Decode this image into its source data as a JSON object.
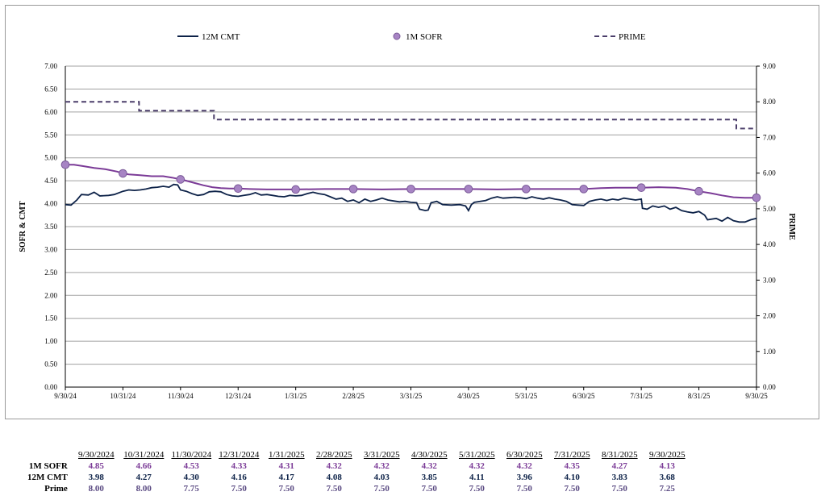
{
  "chart_data": {
    "type": "line",
    "legend": {
      "position": "top",
      "entries": [
        {
          "name": "12M CMT",
          "style": "solid-line"
        },
        {
          "name": "1M SOFR",
          "style": "markers-line"
        },
        {
          "name": "PRIME",
          "style": "dashed-line"
        }
      ]
    },
    "ylabel_left": "SOFR & CMT",
    "ylabel_right": "PRIME",
    "ylim_left": [
      0,
      7
    ],
    "ylim_right": [
      0,
      9
    ],
    "yticks_left": [
      "0.00",
      "0.50",
      "1.00",
      "1.50",
      "2.00",
      "2.50",
      "3.00",
      "3.50",
      "4.00",
      "4.50",
      "5.00",
      "5.50",
      "6.00",
      "6.50",
      "7.00"
    ],
    "yticks_right": [
      "0.00",
      "1.00",
      "2.00",
      "3.00",
      "4.00",
      "5.00",
      "6.00",
      "7.00",
      "8.00",
      "9.00"
    ],
    "x_ticks": [
      "9/30/24",
      "10/31/24",
      "11/30/24",
      "12/31/24",
      "1/31/25",
      "2/28/25",
      "3/31/25",
      "4/30/25",
      "5/31/25",
      "6/30/25",
      "7/31/25",
      "8/31/25",
      "9/30/25"
    ],
    "grid": "horizontal",
    "colors": {
      "cmt": "#0d2248",
      "sofr": "#7b3b97",
      "sofr_marker": "#a784c4",
      "prime": "#4b3e6a",
      "axis": "#000000"
    },
    "series": [
      {
        "name": "12M CMT",
        "axis": "left",
        "points": [
          [
            0,
            3.98
          ],
          [
            0.1,
            3.97
          ],
          [
            0.2,
            4.08
          ],
          [
            0.28,
            4.2
          ],
          [
            0.4,
            4.19
          ],
          [
            0.5,
            4.25
          ],
          [
            0.6,
            4.17
          ],
          [
            0.75,
            4.18
          ],
          [
            0.85,
            4.2
          ],
          [
            1.0,
            4.27
          ],
          [
            1.1,
            4.3
          ],
          [
            1.2,
            4.29
          ],
          [
            1.3,
            4.3
          ],
          [
            1.4,
            4.32
          ],
          [
            1.5,
            4.35
          ],
          [
            1.6,
            4.36
          ],
          [
            1.7,
            4.38
          ],
          [
            1.8,
            4.36
          ],
          [
            1.88,
            4.42
          ],
          [
            1.95,
            4.41
          ],
          [
            2.0,
            4.3
          ],
          [
            2.1,
            4.27
          ],
          [
            2.2,
            4.22
          ],
          [
            2.3,
            4.18
          ],
          [
            2.4,
            4.2
          ],
          [
            2.5,
            4.26
          ],
          [
            2.6,
            4.27
          ],
          [
            2.7,
            4.26
          ],
          [
            2.8,
            4.2
          ],
          [
            2.9,
            4.17
          ],
          [
            3.0,
            4.16
          ],
          [
            3.1,
            4.18
          ],
          [
            3.2,
            4.2
          ],
          [
            3.3,
            4.24
          ],
          [
            3.4,
            4.19
          ],
          [
            3.5,
            4.2
          ],
          [
            3.6,
            4.18
          ],
          [
            3.7,
            4.16
          ],
          [
            3.8,
            4.15
          ],
          [
            3.9,
            4.18
          ],
          [
            4.0,
            4.17
          ],
          [
            4.1,
            4.18
          ],
          [
            4.2,
            4.22
          ],
          [
            4.3,
            4.25
          ],
          [
            4.4,
            4.22
          ],
          [
            4.5,
            4.2
          ],
          [
            4.6,
            4.15
          ],
          [
            4.7,
            4.1
          ],
          [
            4.8,
            4.12
          ],
          [
            4.9,
            4.05
          ],
          [
            5.0,
            4.08
          ],
          [
            5.1,
            4.02
          ],
          [
            5.2,
            4.1
          ],
          [
            5.3,
            4.05
          ],
          [
            5.4,
            4.08
          ],
          [
            5.5,
            4.12
          ],
          [
            5.6,
            4.08
          ],
          [
            5.7,
            4.06
          ],
          [
            5.8,
            4.04
          ],
          [
            5.9,
            4.05
          ],
          [
            6.0,
            4.03
          ],
          [
            6.1,
            4.02
          ],
          [
            6.15,
            3.88
          ],
          [
            6.25,
            3.85
          ],
          [
            6.3,
            3.86
          ],
          [
            6.35,
            4.02
          ],
          [
            6.45,
            4.05
          ],
          [
            6.55,
            3.98
          ],
          [
            6.7,
            3.97
          ],
          [
            6.85,
            3.98
          ],
          [
            6.95,
            3.95
          ],
          [
            7.0,
            3.85
          ],
          [
            7.05,
            3.98
          ],
          [
            7.1,
            4.03
          ],
          [
            7.2,
            4.05
          ],
          [
            7.3,
            4.07
          ],
          [
            7.4,
            4.12
          ],
          [
            7.5,
            4.15
          ],
          [
            7.6,
            4.12
          ],
          [
            7.7,
            4.13
          ],
          [
            7.8,
            4.14
          ],
          [
            7.9,
            4.13
          ],
          [
            8.0,
            4.11
          ],
          [
            8.1,
            4.15
          ],
          [
            8.2,
            4.12
          ],
          [
            8.3,
            4.1
          ],
          [
            8.4,
            4.13
          ],
          [
            8.5,
            4.1
          ],
          [
            8.6,
            4.08
          ],
          [
            8.7,
            4.05
          ],
          [
            8.8,
            3.98
          ],
          [
            8.9,
            3.97
          ],
          [
            9.0,
            3.96
          ],
          [
            9.1,
            4.05
          ],
          [
            9.2,
            4.08
          ],
          [
            9.3,
            4.1
          ],
          [
            9.4,
            4.07
          ],
          [
            9.5,
            4.1
          ],
          [
            9.6,
            4.08
          ],
          [
            9.7,
            4.12
          ],
          [
            9.8,
            4.1
          ],
          [
            9.9,
            4.08
          ],
          [
            10.0,
            4.1
          ],
          [
            10.02,
            3.9
          ],
          [
            10.1,
            3.88
          ],
          [
            10.2,
            3.95
          ],
          [
            10.3,
            3.92
          ],
          [
            10.4,
            3.95
          ],
          [
            10.5,
            3.88
          ],
          [
            10.6,
            3.92
          ],
          [
            10.7,
            3.85
          ],
          [
            10.8,
            3.82
          ],
          [
            10.9,
            3.8
          ],
          [
            11.0,
            3.83
          ],
          [
            11.1,
            3.75
          ],
          [
            11.15,
            3.65
          ],
          [
            11.3,
            3.68
          ],
          [
            11.4,
            3.62
          ],
          [
            11.5,
            3.7
          ],
          [
            11.6,
            3.63
          ],
          [
            11.7,
            3.6
          ],
          [
            11.8,
            3.6
          ],
          [
            11.9,
            3.65
          ],
          [
            12.0,
            3.68
          ]
        ]
      },
      {
        "name": "1M SOFR",
        "axis": "left",
        "points": [
          [
            0,
            4.85
          ],
          [
            0.15,
            4.85
          ],
          [
            0.3,
            4.82
          ],
          [
            0.5,
            4.78
          ],
          [
            0.7,
            4.75
          ],
          [
            0.9,
            4.7
          ],
          [
            1.0,
            4.66
          ],
          [
            1.1,
            4.64
          ],
          [
            1.3,
            4.62
          ],
          [
            1.5,
            4.6
          ],
          [
            1.7,
            4.6
          ],
          [
            1.85,
            4.57
          ],
          [
            2.0,
            4.53
          ],
          [
            2.1,
            4.5
          ],
          [
            2.25,
            4.45
          ],
          [
            2.4,
            4.4
          ],
          [
            2.55,
            4.36
          ],
          [
            2.7,
            4.34
          ],
          [
            2.85,
            4.33
          ],
          [
            3.0,
            4.33
          ],
          [
            3.2,
            4.32
          ],
          [
            3.5,
            4.31
          ],
          [
            4.0,
            4.31
          ],
          [
            4.5,
            4.32
          ],
          [
            5.0,
            4.32
          ],
          [
            5.5,
            4.31
          ],
          [
            6.0,
            4.32
          ],
          [
            6.5,
            4.32
          ],
          [
            7.0,
            4.32
          ],
          [
            7.5,
            4.31
          ],
          [
            8.0,
            4.32
          ],
          [
            8.5,
            4.32
          ],
          [
            9.0,
            4.32
          ],
          [
            9.3,
            4.34
          ],
          [
            9.6,
            4.35
          ],
          [
            10.0,
            4.35
          ],
          [
            10.3,
            4.36
          ],
          [
            10.6,
            4.35
          ],
          [
            10.8,
            4.32
          ],
          [
            11.0,
            4.27
          ],
          [
            11.2,
            4.23
          ],
          [
            11.4,
            4.18
          ],
          [
            11.6,
            4.14
          ],
          [
            11.8,
            4.13
          ],
          [
            12.0,
            4.13
          ]
        ],
        "marker_values": [
          4.85,
          4.66,
          4.53,
          4.33,
          4.31,
          4.32,
          4.32,
          4.32,
          4.32,
          4.32,
          4.35,
          4.27,
          4.13
        ]
      },
      {
        "name": "PRIME",
        "axis": "right",
        "points": [
          [
            0,
            8.0
          ],
          [
            1.28,
            8.0
          ],
          [
            1.28,
            7.75
          ],
          [
            2.58,
            7.75
          ],
          [
            2.58,
            7.5
          ],
          [
            11.65,
            7.5
          ],
          [
            11.65,
            7.25
          ],
          [
            12.0,
            7.25
          ]
        ]
      }
    ]
  },
  "table": {
    "columns": [
      "9/30/2024",
      "10/31/2024",
      "11/30/2024",
      "12/31/2024",
      "1/31/2025",
      "2/28/2025",
      "3/31/2025",
      "4/30/2025",
      "5/31/2025",
      "6/30/2025",
      "7/31/2025",
      "8/31/2025",
      "9/30/2025"
    ],
    "rows": [
      {
        "label": "1M SOFR",
        "color": "#7b3b97",
        "values": [
          "4.85",
          "4.66",
          "4.53",
          "4.33",
          "4.31",
          "4.32",
          "4.32",
          "4.32",
          "4.32",
          "4.32",
          "4.35",
          "4.27",
          "4.13"
        ]
      },
      {
        "label": "12M CMT",
        "color": "#0d2248",
        "values": [
          "3.98",
          "4.27",
          "4.30",
          "4.16",
          "4.17",
          "4.08",
          "4.03",
          "3.85",
          "4.11",
          "3.96",
          "4.10",
          "3.83",
          "3.68"
        ]
      },
      {
        "label": "Prime",
        "color": "#5a4a82",
        "values": [
          "8.00",
          "8.00",
          "7.75",
          "7.50",
          "7.50",
          "7.50",
          "7.50",
          "7.50",
          "7.50",
          "7.50",
          "7.50",
          "7.50",
          "7.25"
        ]
      }
    ]
  }
}
